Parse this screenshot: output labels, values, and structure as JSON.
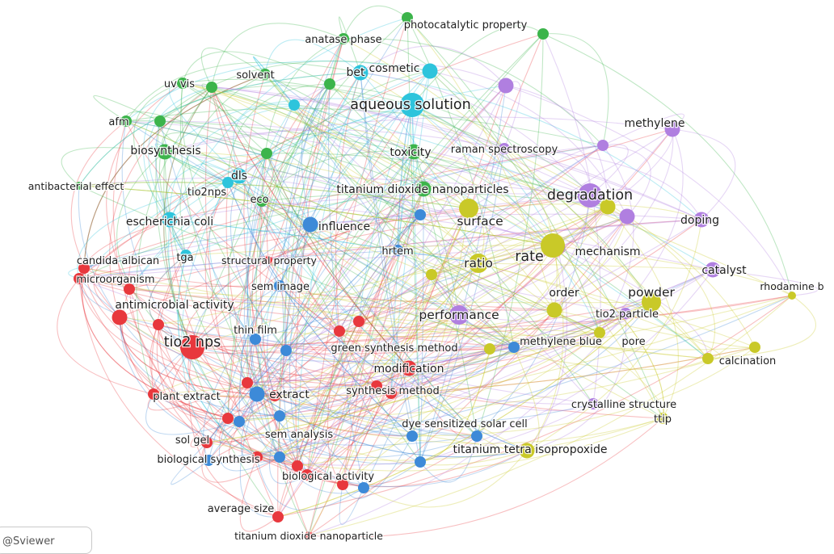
{
  "colors": {
    "red": "#e8383d",
    "green": "#3cb44b",
    "cyan": "#2ec4dc",
    "blue": "#3d8ad8",
    "purple": "#b07fe0",
    "yellow": "#c9c928"
  },
  "nodes": [
    {
      "id": "tio2 nps",
      "label": "tio2 nps",
      "cluster": "red",
      "weight": 5
    },
    {
      "id": "antimicrobial activity",
      "label": "antimicrobial activity",
      "cluster": "red",
      "weight": 3
    },
    {
      "id": "candida albicans",
      "label": "candida albican",
      "cluster": "red",
      "weight": 2
    },
    {
      "id": "microorganism",
      "label": "microorganism",
      "cluster": "red",
      "weight": 2
    },
    {
      "id": "plant extract",
      "label": "plant extract",
      "cluster": "red",
      "weight": 2
    },
    {
      "id": "green synthesis method",
      "label": "green synthesis method",
      "cluster": "red",
      "weight": 2
    },
    {
      "id": "modification",
      "label": "modification",
      "cluster": "red",
      "weight": 3
    },
    {
      "id": "synthesis method",
      "label": "synthesis method",
      "cluster": "red",
      "weight": 2
    },
    {
      "id": "sol gel",
      "label": "sol gel",
      "cluster": "red",
      "weight": 2
    },
    {
      "id": "biological activity",
      "label": "biological activity",
      "cluster": "red",
      "weight": 2
    },
    {
      "id": "average size",
      "label": "average size",
      "cluster": "red",
      "weight": 2
    },
    {
      "id": "titanium dioxide nanoparticle",
      "label": "titanium dioxide nanoparticle",
      "cluster": "red",
      "weight": 1
    },
    {
      "id": "structural property",
      "label": "structural property",
      "cluster": "red",
      "weight": 1
    },
    {
      "id": "red-a",
      "label": "",
      "cluster": "red",
      "weight": 2
    },
    {
      "id": "red-b",
      "label": "",
      "cluster": "red",
      "weight": 2
    },
    {
      "id": "red-c",
      "label": "",
      "cluster": "red",
      "weight": 2
    },
    {
      "id": "red-d",
      "label": "",
      "cluster": "red",
      "weight": 2
    },
    {
      "id": "red-e",
      "label": "",
      "cluster": "red",
      "weight": 2
    },
    {
      "id": "red-f",
      "label": "",
      "cluster": "red",
      "weight": 2
    },
    {
      "id": "red-g",
      "label": "",
      "cluster": "red",
      "weight": 2
    },
    {
      "id": "red-h",
      "label": "",
      "cluster": "red",
      "weight": 2
    },
    {
      "id": "red-i",
      "label": "",
      "cluster": "red",
      "weight": 2
    },
    {
      "id": "red-j",
      "label": "",
      "cluster": "red",
      "weight": 2
    },
    {
      "id": "antibacterial effect",
      "label": "antibacterial effect",
      "cluster": "green",
      "weight": 1
    },
    {
      "id": "afm",
      "label": "afm",
      "cluster": "green",
      "weight": 2
    },
    {
      "id": "uv vis",
      "label": "uv vis",
      "cluster": "green",
      "weight": 2
    },
    {
      "id": "solvent",
      "label": "solvent",
      "cluster": "green",
      "weight": 2
    },
    {
      "id": "anatase phase",
      "label": "anatase phase",
      "cluster": "green",
      "weight": 2
    },
    {
      "id": "photocatalytic property",
      "label": "photocatalytic property",
      "cluster": "green",
      "weight": 2
    },
    {
      "id": "biosynthesis",
      "label": "biosynthesis",
      "cluster": "green",
      "weight": 3
    },
    {
      "id": "eco",
      "label": "eco",
      "cluster": "green",
      "weight": 2
    },
    {
      "id": "toxicity",
      "label": "toxicity",
      "cluster": "green",
      "weight": 3
    },
    {
      "id": "titanium dioxide nanoparticles",
      "label": "titanium dioxide nanoparticles",
      "cluster": "green",
      "weight": 3
    },
    {
      "id": "green-a",
      "label": "",
      "cluster": "green",
      "weight": 2
    },
    {
      "id": "green-b",
      "label": "",
      "cluster": "green",
      "weight": 2
    },
    {
      "id": "green-c",
      "label": "",
      "cluster": "green",
      "weight": 2
    },
    {
      "id": "green-d",
      "label": "",
      "cluster": "green",
      "weight": 2
    },
    {
      "id": "green-e",
      "label": "",
      "cluster": "green",
      "weight": 2
    },
    {
      "id": "aqueous solution",
      "label": "aqueous solution",
      "cluster": "cyan",
      "weight": 5
    },
    {
      "id": "bet",
      "label": "bet",
      "cluster": "cyan",
      "weight": 3
    },
    {
      "id": "cosmetic",
      "label": "cosmetic",
      "cluster": "cyan",
      "weight": 3
    },
    {
      "id": "dls",
      "label": "dls",
      "cluster": "cyan",
      "weight": 3
    },
    {
      "id": "tio2nps",
      "label": "tio2nps",
      "cluster": "cyan",
      "weight": 2
    },
    {
      "id": "escherichia coli",
      "label": "escherichia coli",
      "cluster": "cyan",
      "weight": 3
    },
    {
      "id": "tga",
      "label": "tga",
      "cluster": "cyan",
      "weight": 2
    },
    {
      "id": "cyan-a",
      "label": "",
      "cluster": "cyan",
      "weight": 2
    },
    {
      "id": "influence",
      "label": "influence",
      "cluster": "blue",
      "weight": 3
    },
    {
      "id": "hrtem",
      "label": "hrtem",
      "cluster": "blue",
      "weight": 2
    },
    {
      "id": "sem image",
      "label": "sem image",
      "cluster": "blue",
      "weight": 2
    },
    {
      "id": "thin film",
      "label": "thin film",
      "cluster": "blue",
      "weight": 2
    },
    {
      "id": "extract",
      "label": "extract",
      "cluster": "blue",
      "weight": 3
    },
    {
      "id": "sem analysis",
      "label": "sem analysis",
      "cluster": "blue",
      "weight": 2
    },
    {
      "id": "biological synthesis",
      "label": "biological synthesis",
      "cluster": "blue",
      "weight": 2
    },
    {
      "id": "methylene blue",
      "label": "methylene blue",
      "cluster": "blue",
      "weight": 2
    },
    {
      "id": "dye sensitized solar cell",
      "label": "dye sensitized solar cell",
      "cluster": "blue",
      "weight": 2
    },
    {
      "id": "blue-a",
      "label": "",
      "cluster": "blue",
      "weight": 2
    },
    {
      "id": "blue-b",
      "label": "",
      "cluster": "blue",
      "weight": 2
    },
    {
      "id": "blue-c",
      "label": "",
      "cluster": "blue",
      "weight": 2
    },
    {
      "id": "blue-d",
      "label": "",
      "cluster": "blue",
      "weight": 2
    },
    {
      "id": "blue-e",
      "label": "",
      "cluster": "blue",
      "weight": 2
    },
    {
      "id": "blue-f",
      "label": "",
      "cluster": "blue",
      "weight": 2
    },
    {
      "id": "blue-g",
      "label": "",
      "cluster": "blue",
      "weight": 2
    },
    {
      "id": "degradation",
      "label": "degradation",
      "cluster": "purple",
      "weight": 5
    },
    {
      "id": "methylene",
      "label": "methylene",
      "cluster": "purple",
      "weight": 3
    },
    {
      "id": "raman spectroscopy",
      "label": "raman spectroscopy",
      "cluster": "purple",
      "weight": 2
    },
    {
      "id": "doping",
      "label": "doping",
      "cluster": "purple",
      "weight": 3
    },
    {
      "id": "mechanism",
      "label": "mechanism",
      "cluster": "purple",
      "weight": 3
    },
    {
      "id": "catalyst",
      "label": "catalyst",
      "cluster": "purple",
      "weight": 3
    },
    {
      "id": "performance",
      "label": "performance",
      "cluster": "purple",
      "weight": 4
    },
    {
      "id": "tio2 particle",
      "label": "tio2 particle",
      "cluster": "purple",
      "weight": 2
    },
    {
      "id": "crystalline structure",
      "label": "crystalline structure",
      "cluster": "purple",
      "weight": 2
    },
    {
      "id": "purple-a",
      "label": "",
      "cluster": "purple",
      "weight": 3
    },
    {
      "id": "purple-b",
      "label": "",
      "cluster": "purple",
      "weight": 3
    },
    {
      "id": "purple-c",
      "label": "",
      "cluster": "purple",
      "weight": 2
    },
    {
      "id": "surface",
      "label": "surface",
      "cluster": "yellow",
      "weight": 4
    },
    {
      "id": "rate",
      "label": "rate",
      "cluster": "yellow",
      "weight": 5
    },
    {
      "id": "ratio",
      "label": "ratio",
      "cluster": "yellow",
      "weight": 4
    },
    {
      "id": "order",
      "label": "order",
      "cluster": "yellow",
      "weight": 3
    },
    {
      "id": "powder",
      "label": "powder",
      "cluster": "yellow",
      "weight": 4
    },
    {
      "id": "rhodamine b",
      "label": "rhodamine b",
      "cluster": "yellow",
      "weight": 1
    },
    {
      "id": "pore",
      "label": "pore",
      "cluster": "yellow",
      "weight": 2
    },
    {
      "id": "calcination",
      "label": "calcination",
      "cluster": "yellow",
      "weight": 2
    },
    {
      "id": "ttip",
      "label": "ttip",
      "cluster": "yellow",
      "weight": 2
    },
    {
      "id": "titanium tetra isopropoxide",
      "label": "titanium tetra isopropoxide",
      "cluster": "yellow",
      "weight": 3
    },
    {
      "id": "yellow-a",
      "label": "",
      "cluster": "yellow",
      "weight": 2
    },
    {
      "id": "yellow-b",
      "label": "",
      "cluster": "yellow",
      "weight": 2
    },
    {
      "id": "yellow-c",
      "label": "",
      "cluster": "yellow",
      "weight": 3
    },
    {
      "id": "yellow-d",
      "label": "",
      "cluster": "yellow",
      "weight": 2
    }
  ],
  "watermark": "@Sviewer"
}
